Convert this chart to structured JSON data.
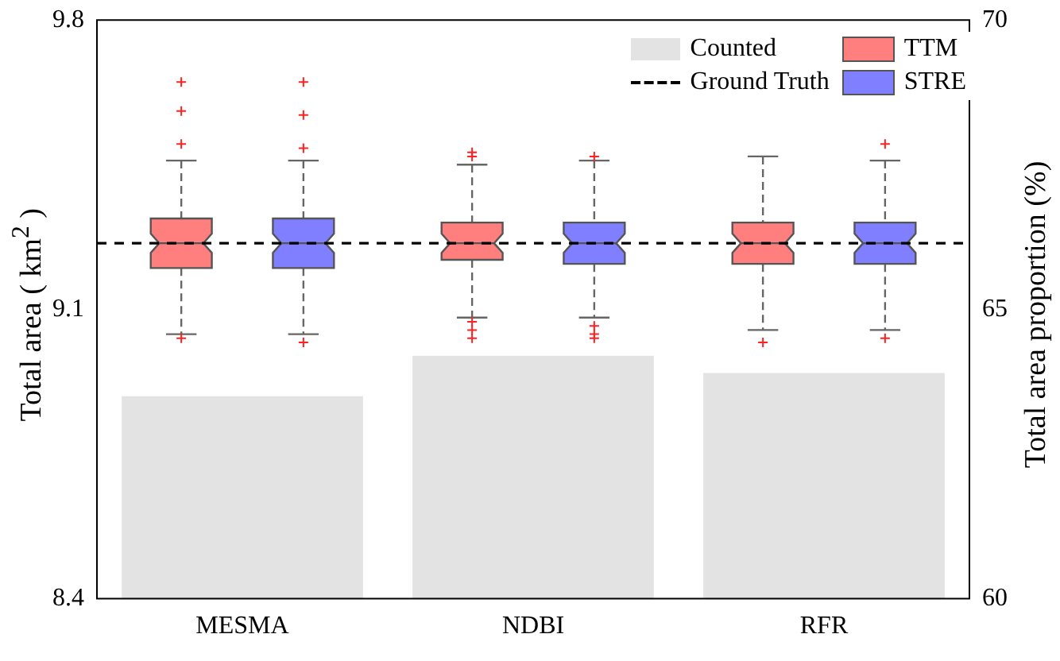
{
  "chart_data": {
    "type": "box",
    "categories": [
      "MESMA",
      "NDBI",
      "RFR"
    ],
    "ylabel": "Total area ( km$^{2}$ )",
    "y2label": "Total area proportion (%)",
    "ylim": [
      8.4,
      9.8
    ],
    "yticks": [
      8.4,
      9.1,
      9.8
    ],
    "y2lim": [
      60,
      70
    ],
    "y2ticks": [
      60,
      65,
      70
    ],
    "legend": "top right",
    "grid": false,
    "series": [
      {
        "name": "Counted",
        "type": "bar",
        "axis": "y2",
        "color": "#e3e3e3",
        "values": [
          63.5,
          64.2,
          63.9
        ]
      },
      {
        "name": "TTM",
        "color": "#ff7f7f",
        "boxes": [
          {
            "low": 9.04,
            "q1": 9.2,
            "median": 9.26,
            "q3": 9.32,
            "high": 9.46,
            "outliers": [
              9.65,
              9.58,
              9.5,
              9.03
            ]
          },
          {
            "low": 9.08,
            "q1": 9.22,
            "median": 9.26,
            "q3": 9.31,
            "high": 9.45,
            "outliers": [
              9.48,
              9.47,
              9.07,
              9.05,
              9.03
            ]
          },
          {
            "low": 9.05,
            "q1": 9.21,
            "median": 9.26,
            "q3": 9.31,
            "high": 9.47,
            "outliers": [
              9.02
            ]
          }
        ]
      },
      {
        "name": "STRE",
        "color": "#7f7fff",
        "boxes": [
          {
            "low": 9.04,
            "q1": 9.2,
            "median": 9.26,
            "q3": 9.32,
            "high": 9.46,
            "outliers": [
              9.65,
              9.57,
              9.49,
              9.02
            ]
          },
          {
            "low": 9.08,
            "q1": 9.21,
            "median": 9.26,
            "q3": 9.31,
            "high": 9.46,
            "outliers": [
              9.47,
              9.06,
              9.04,
              9.03
            ]
          },
          {
            "low": 9.05,
            "q1": 9.21,
            "median": 9.26,
            "q3": 9.31,
            "high": 9.46,
            "outliers": [
              9.5,
              9.03
            ]
          }
        ]
      }
    ],
    "ref_lines": [
      {
        "axis": "y",
        "value": 9.26,
        "label": "Ground Truth",
        "line_style": "dashed",
        "color": "#000000"
      }
    ]
  }
}
